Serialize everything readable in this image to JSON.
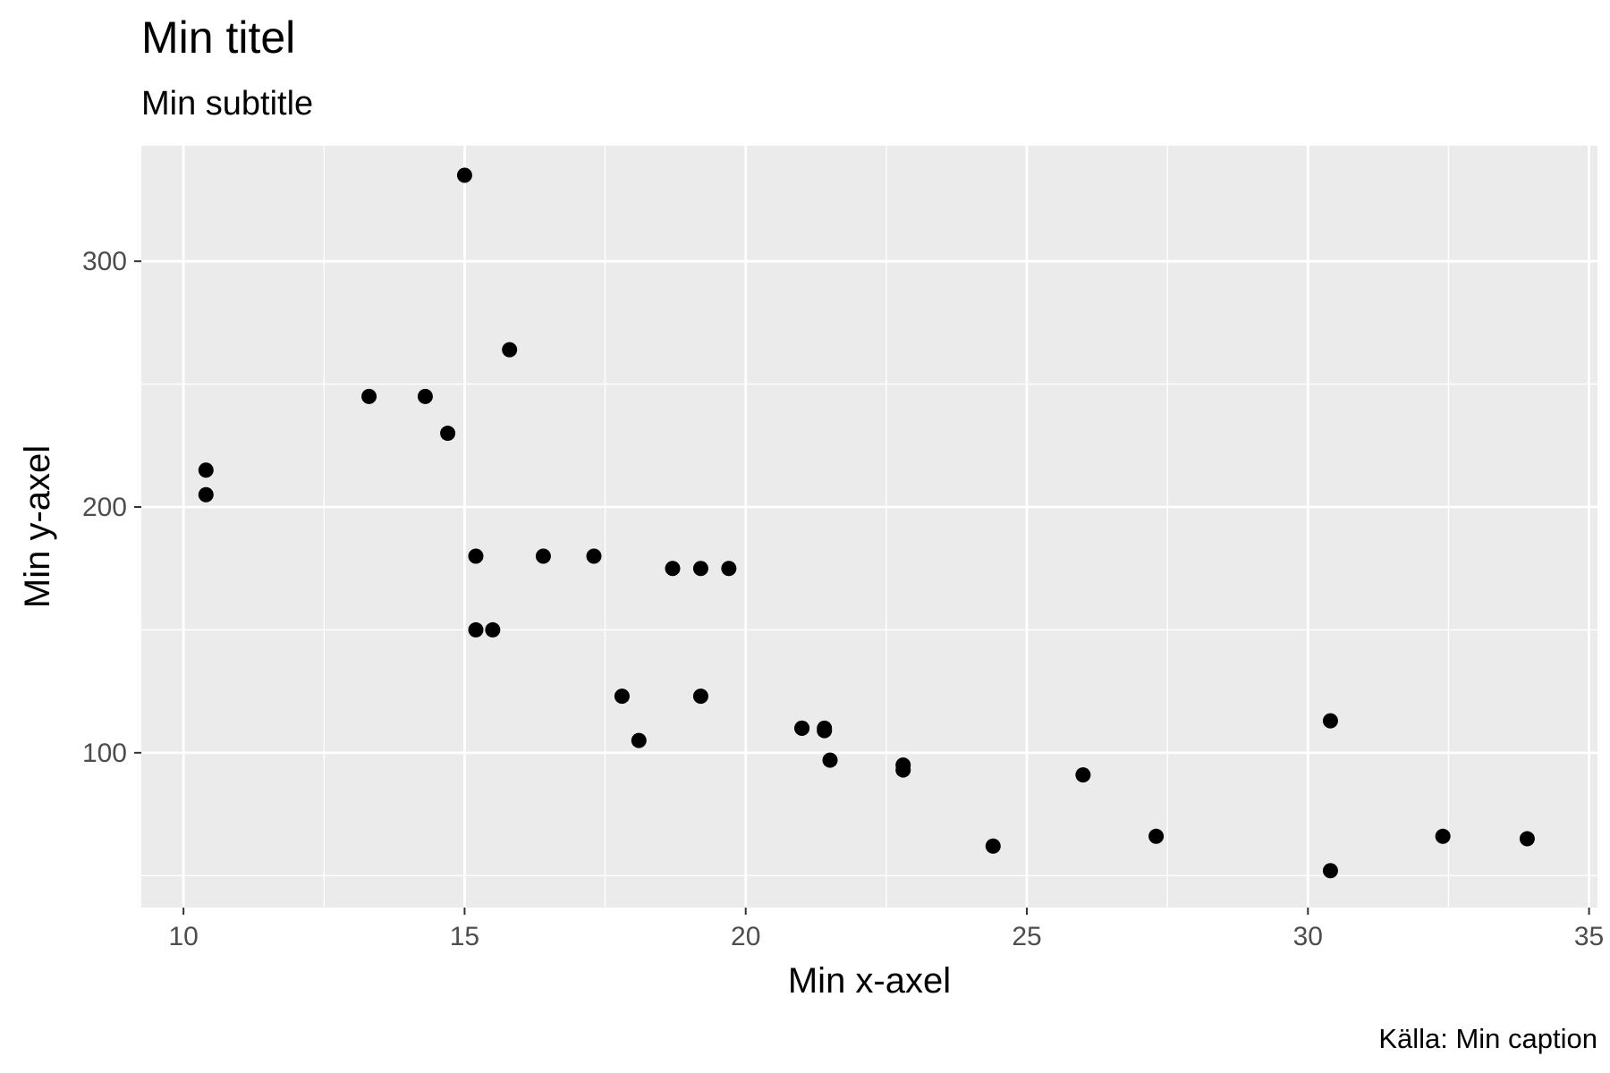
{
  "chart_data": {
    "type": "scatter",
    "title": "Min titel",
    "subtitle": "Min subtitle",
    "xlabel": "Min x-axel",
    "ylabel": "Min y-axel",
    "caption": "Källa: Min caption",
    "xlim": [
      9.25,
      35.15
    ],
    "ylim": [
      37,
      347
    ],
    "x_ticks": [
      10,
      15,
      20,
      25,
      30,
      35
    ],
    "x_tick_labels": [
      "10",
      "15",
      "20",
      "25",
      "30",
      "35"
    ],
    "x_minor_ticks": [
      12.5,
      17.5,
      22.5,
      27.5,
      32.5
    ],
    "y_ticks": [
      100,
      200,
      300
    ],
    "y_tick_labels": [
      "100",
      "200",
      "300"
    ],
    "y_minor_ticks": [
      50,
      150,
      250
    ],
    "grid": true,
    "colors": {
      "panel_background": "#ebebeb",
      "grid_line": "#ffffff",
      "point": "#000000",
      "tick_label": "#4d4d4d",
      "text": "#000000"
    },
    "points": [
      {
        "x": 21.0,
        "y": 110
      },
      {
        "x": 21.0,
        "y": 110
      },
      {
        "x": 22.8,
        "y": 93
      },
      {
        "x": 21.4,
        "y": 110
      },
      {
        "x": 18.7,
        "y": 175
      },
      {
        "x": 18.1,
        "y": 105
      },
      {
        "x": 14.3,
        "y": 245
      },
      {
        "x": 24.4,
        "y": 62
      },
      {
        "x": 22.8,
        "y": 95
      },
      {
        "x": 19.2,
        "y": 123
      },
      {
        "x": 17.8,
        "y": 123
      },
      {
        "x": 16.4,
        "y": 180
      },
      {
        "x": 17.3,
        "y": 180
      },
      {
        "x": 15.2,
        "y": 180
      },
      {
        "x": 10.4,
        "y": 205
      },
      {
        "x": 10.4,
        "y": 215
      },
      {
        "x": 14.7,
        "y": 230
      },
      {
        "x": 32.4,
        "y": 66
      },
      {
        "x": 30.4,
        "y": 52
      },
      {
        "x": 33.9,
        "y": 65
      },
      {
        "x": 21.5,
        "y": 97
      },
      {
        "x": 15.5,
        "y": 150
      },
      {
        "x": 15.2,
        "y": 150
      },
      {
        "x": 13.3,
        "y": 245
      },
      {
        "x": 19.2,
        "y": 175
      },
      {
        "x": 27.3,
        "y": 66
      },
      {
        "x": 26.0,
        "y": 91
      },
      {
        "x": 30.4,
        "y": 113
      },
      {
        "x": 15.8,
        "y": 264
      },
      {
        "x": 19.7,
        "y": 175
      },
      {
        "x": 15.0,
        "y": 335
      },
      {
        "x": 21.4,
        "y": 109
      }
    ]
  }
}
